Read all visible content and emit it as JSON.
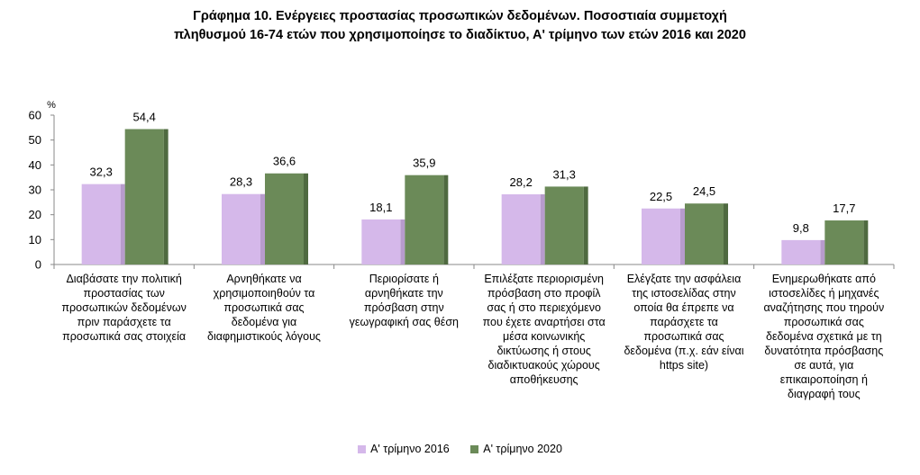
{
  "title_line1": "Γράφημα 10.  Ενέργειες προστασίας προσωπικών δεδομένων.   Ποσοστιαία συμμετοχή",
  "title_line2": "πληθυσμού 16-74 ετών που χρησιμοποίησε το διαδίκτυο, Α' τρίμηνο των ετών 2016 και 2020",
  "colors": {
    "series1": "#d5b8ea",
    "series2": "#6b8a58"
  },
  "chart_data": {
    "type": "bar",
    "ylabel": "%",
    "ylim": [
      0,
      60
    ],
    "yticks": [
      "0",
      "10",
      "20",
      "30",
      "40",
      "50",
      "60"
    ],
    "categories": [
      "Διαβάσατε την πολιτική προστασίας των προσωπικών δεδομένων πριν παράσχετε τα προσωπικά σας στοιχεία",
      "Αρνηθήκατε  να χρησιμοποιηθούν τα προσωπικά  σας δεδομένα για διαφημιστικούς λόγους",
      "Περιορίσατε ή αρνηθήκατε την πρόσβαση στην γεωγραφική σας θέση",
      "Επιλέξατε περιορισμένη πρόσβαση στο προφίλ σας ή στο περιεχόμενο που έχετε αναρτήσει στα μέσα κοινωνικής δικτύωσης ή στους διαδικτυακούς χώρους αποθήκευσης",
      "Ελέγξατε την ασφάλεια της ιστοσελίδας στην οποία θα έπρεπε να παράσχετε τα προσωπικά σας δεδομένα  (π.χ. εάν είναι https site)",
      "Ενημερωθήκατε από ιστοσελίδες ή μηχανές αναζήτησης που τηρούν προσωπικά σας δεδομένα σχετικά με τη δυνατότητα πρόσβασης σε αυτά, για επικαιροποίηση ή διαγραφή τους"
    ],
    "category_lines": [
      [
        "Διαβάσατε την πολιτική",
        "προστασίας των",
        "προσωπικών δεδομένων",
        "πριν παράσχετε τα",
        "προσωπικά σας στοιχεία"
      ],
      [
        "Αρνηθήκατε  να",
        "χρησιμοποιηθούν τα",
        "προσωπικά  σας",
        "δεδομένα για",
        "διαφημιστικούς λόγους"
      ],
      [
        "Περιορίσατε ή",
        "αρνηθήκατε την",
        "πρόσβαση στην",
        "γεωγραφική σας θέση"
      ],
      [
        "Επιλέξατε περιορισμένη",
        "πρόσβαση στο προφίλ",
        "σας ή στο περιεχόμενο",
        "που έχετε αναρτήσει στα",
        "μέσα κοινωνικής",
        "δικτύωσης ή στους",
        "διαδικτυακούς χώρους",
        "αποθήκευσης"
      ],
      [
        "Ελέγξατε την ασφάλεια",
        "της ιστοσελίδας στην",
        "οποία θα έπρεπε να",
        "παράσχετε τα",
        "προσωπικά σας",
        "δεδομένα  (π.χ. εάν είναι",
        "https site)"
      ],
      [
        "Ενημερωθήκατε από",
        "ιστοσελίδες ή μηχανές",
        "αναζήτησης που τηρούν",
        "προσωπικά σας",
        "δεδομένα σχετικά με τη",
        "δυνατότητα πρόσβασης",
        "σε αυτά, για",
        "επικαιροποίηση ή",
        "διαγραφή τους"
      ]
    ],
    "series": [
      {
        "name": "Α' τρίμηνο 2016",
        "values": [
          32.3,
          28.3,
          18.1,
          28.2,
          22.5,
          9.8
        ],
        "labels": [
          "32,3",
          "28,3",
          "18,1",
          "28,2",
          "22,5",
          "9,8"
        ]
      },
      {
        "name": "Α' τρίμηνο 2020",
        "values": [
          54.4,
          36.6,
          35.9,
          31.3,
          24.5,
          17.7
        ],
        "labels": [
          "54,4",
          "36,6",
          "35,9",
          "31,3",
          "24,5",
          "17,7"
        ]
      }
    ],
    "legend_position": "bottom",
    "grid": false
  }
}
